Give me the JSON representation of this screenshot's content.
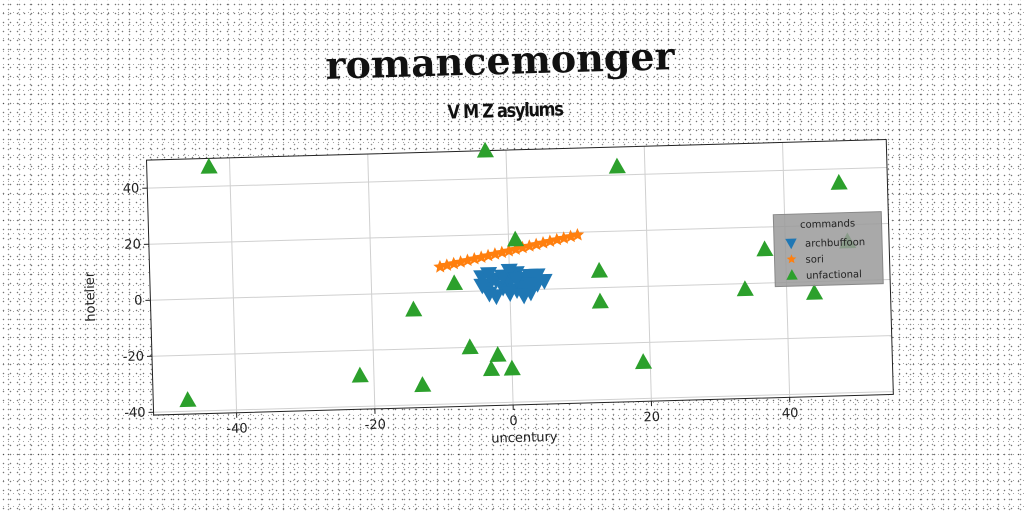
{
  "page_title": "romancemonger",
  "chart_data": {
    "type": "scatter",
    "title": "V M Z asylums",
    "xlabel": "uncentury",
    "ylabel": "hotelier",
    "xlim": [
      -52,
      55
    ],
    "ylim": [
      -41,
      50
    ],
    "xticks": [
      -40,
      -20,
      0,
      20,
      40
    ],
    "yticks": [
      -40,
      -20,
      0,
      20,
      40
    ],
    "grid": true,
    "legend": {
      "title": "commands",
      "placement": "center-right",
      "entries": [
        {
          "label": "archbuffoon",
          "marker": "triangle-down",
          "color": "#1f77b4"
        },
        {
          "label": "sori",
          "marker": "star",
          "color": "#ff7f0e"
        },
        {
          "label": "unfactional",
          "marker": "triangle-up",
          "color": "#2ca02c"
        }
      ]
    },
    "series": [
      {
        "name": "archbuffoon",
        "marker": "triangle-down",
        "color": "#1f77b4",
        "points": [
          [
            -4,
            5
          ],
          [
            -3,
            2
          ],
          [
            -2,
            4
          ],
          [
            -1,
            1
          ],
          [
            -3,
            -1
          ],
          [
            0,
            3
          ],
          [
            1,
            0
          ],
          [
            2,
            4
          ],
          [
            3,
            -1
          ],
          [
            4,
            2
          ],
          [
            5,
            3
          ],
          [
            -2,
            -2
          ],
          [
            -1,
            5
          ],
          [
            0,
            -1
          ],
          [
            1,
            6
          ],
          [
            2,
            1
          ],
          [
            3,
            5
          ],
          [
            -4,
            2
          ],
          [
            2,
            -2
          ],
          [
            4,
            5
          ],
          [
            -3,
            6
          ],
          [
            0,
            7
          ],
          [
            1,
            4
          ],
          [
            3,
            2
          ]
        ]
      },
      {
        "name": "sori",
        "marker": "star",
        "color": "#ff7f0e",
        "points": [
          [
            -10,
            9
          ],
          [
            -9,
            9.5
          ],
          [
            -8,
            10
          ],
          [
            -7,
            10.5
          ],
          [
            -6,
            11
          ],
          [
            -5,
            11.5
          ],
          [
            -4,
            12
          ],
          [
            -3,
            12.5
          ],
          [
            -2,
            13
          ],
          [
            -1,
            13.5
          ],
          [
            0,
            14
          ],
          [
            1,
            14.5
          ],
          [
            2,
            15
          ],
          [
            3,
            15.5
          ],
          [
            4,
            16
          ],
          [
            5,
            16.5
          ],
          [
            6,
            17
          ],
          [
            7,
            17.5
          ],
          [
            8,
            18
          ],
          [
            9,
            18.5
          ],
          [
            10,
            19
          ]
        ]
      },
      {
        "name": "unfactional",
        "marker": "triangle-up",
        "color": "#2ca02c",
        "points": [
          [
            -43,
            47
          ],
          [
            -3,
            50
          ],
          [
            16,
            43
          ],
          [
            48,
            35
          ],
          [
            1,
            18
          ],
          [
            37,
            12
          ],
          [
            49,
            14
          ],
          [
            -8,
            3
          ],
          [
            13,
            6
          ],
          [
            -14,
            -6
          ],
          [
            13,
            -5
          ],
          [
            34,
            -2
          ],
          [
            44,
            -4
          ],
          [
            -6,
            -20
          ],
          [
            -2,
            -23
          ],
          [
            -3,
            -28
          ],
          [
            0,
            -28
          ],
          [
            -22,
            -29
          ],
          [
            19,
            -27
          ],
          [
            -13,
            -33
          ],
          [
            -47,
            -36
          ]
        ]
      }
    ]
  }
}
